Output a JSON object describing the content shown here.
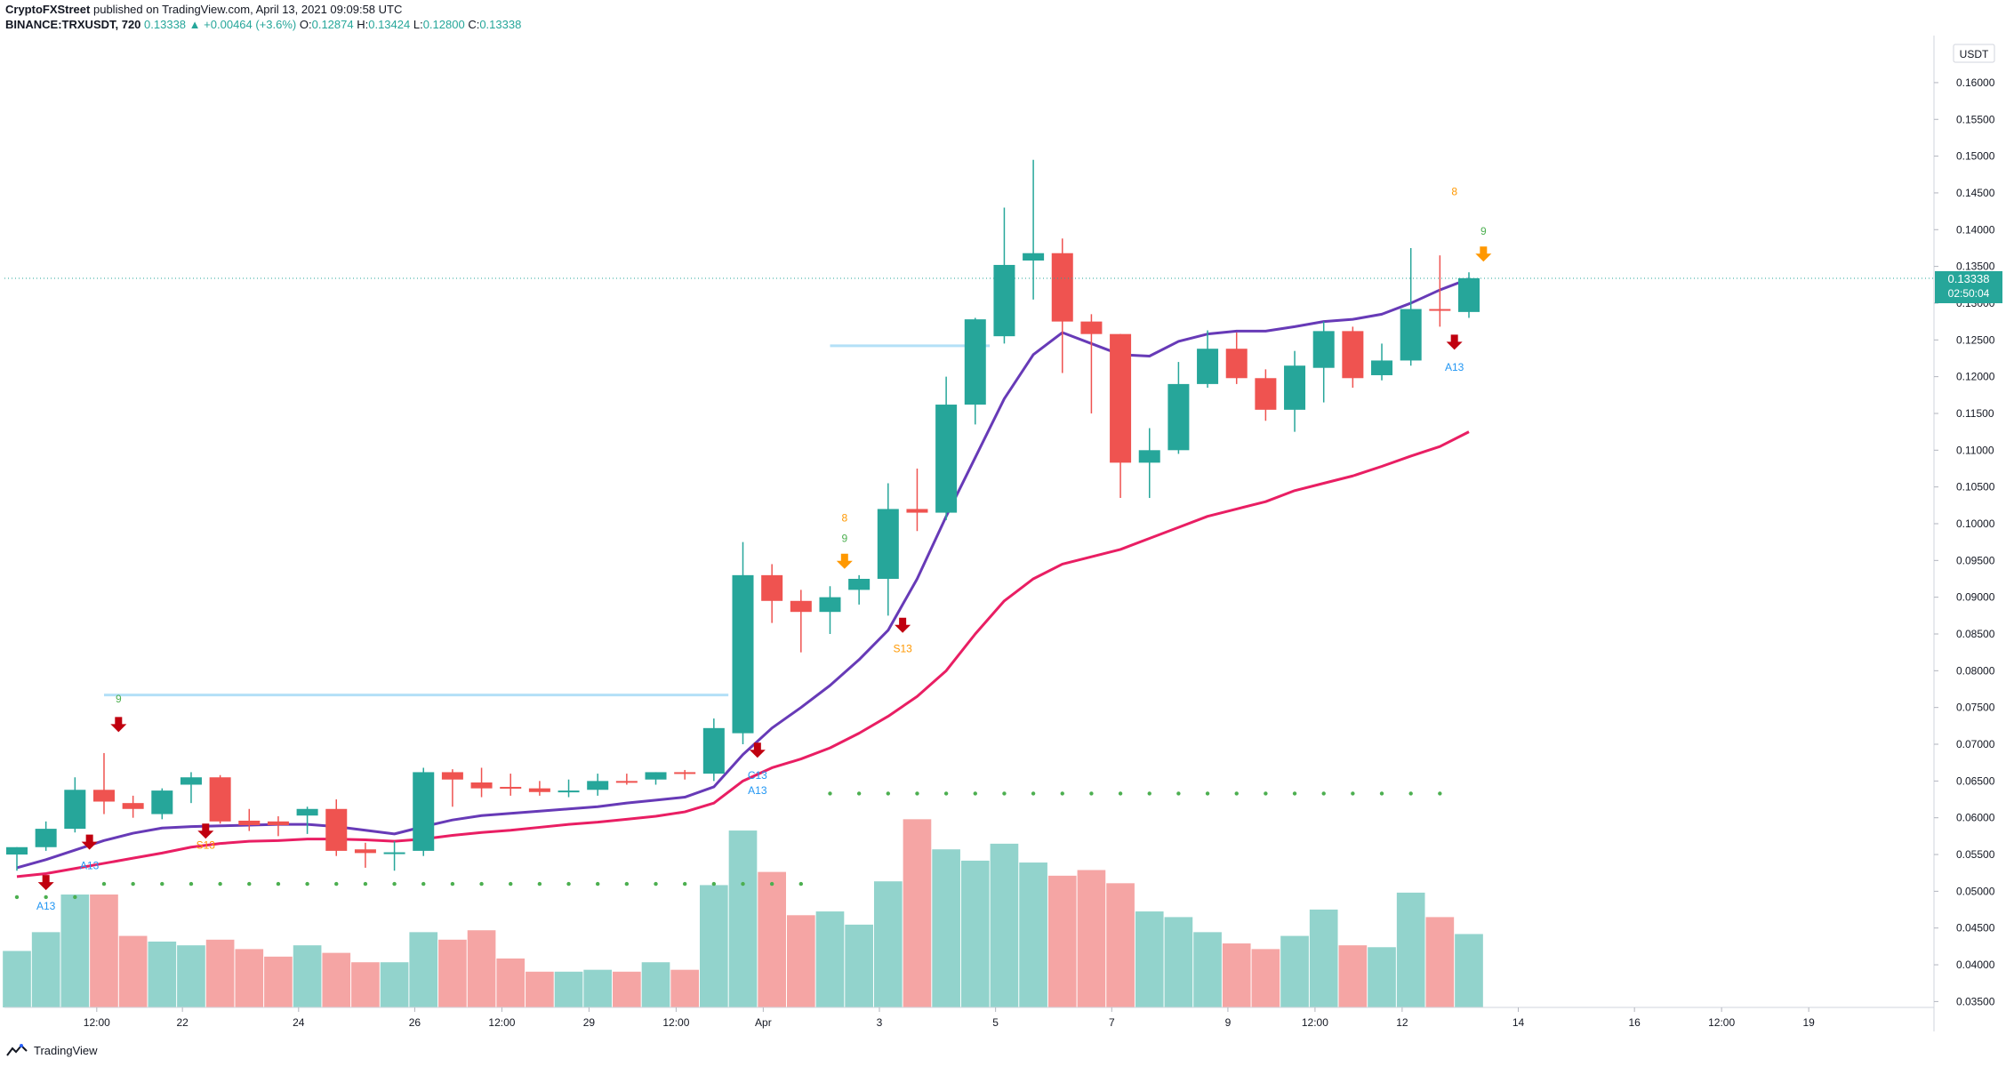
{
  "header": {
    "author": "CryptoFXStreet",
    "published_text": "published on TradingView.com, April 13, 2021 09:09:58 UTC",
    "symbol": "BINANCE:TRXUSDT, 720",
    "last_price": "0.13338",
    "change": "+0.00464 (+3.6%)",
    "open_label": "O:",
    "open": "0.12874",
    "high_label": "H:",
    "high": "0.13424",
    "low_label": "L:",
    "low": "0.12800",
    "close_label": "C:",
    "close": "0.13338"
  },
  "footer": {
    "brand": "TradingView"
  },
  "colors": {
    "up": "#26a69a",
    "down": "#ef5350",
    "vol_up": "#92d3cc",
    "vol_down": "#f5a5a4",
    "ma_fast": "#673ab7",
    "ma_slow": "#e91e63",
    "resistance": "#b3e0f7",
    "dots": "#4caf50"
  },
  "chart_data": {
    "type": "candlestick",
    "title": "",
    "currency_label": "USDT",
    "price_ticks": [
      "0.16000",
      "0.15500",
      "0.15000",
      "0.14500",
      "0.14000",
      "0.13500",
      "0.13000",
      "0.12500",
      "0.12000",
      "0.11500",
      "0.11000",
      "0.10500",
      "0.10000",
      "0.09500",
      "0.09000",
      "0.08500",
      "0.08000",
      "0.07500",
      "0.07000",
      "0.06500",
      "0.06000",
      "0.05500",
      "0.05000",
      "0.04500",
      "0.04000",
      "0.03500"
    ],
    "ylim": [
      0.0342,
      0.1664
    ],
    "last_price_label": "0.13338",
    "countdown_label": "02:50:04",
    "x_ticks": [
      {
        "label": "19",
        "i": -0.5
      },
      {
        "label": "12:00",
        "i": 2.75
      },
      {
        "label": "22",
        "i": 5.7
      },
      {
        "label": "24",
        "i": 9.7
      },
      {
        "label": "26",
        "i": 13.7
      },
      {
        "label": "12:00",
        "i": 16.7
      },
      {
        "label": "29",
        "i": 19.7
      },
      {
        "label": "12:00",
        "i": 22.7
      },
      {
        "label": "Apr",
        "i": 25.7
      },
      {
        "label": "3",
        "i": 29.7
      },
      {
        "label": "5",
        "i": 33.7
      },
      {
        "label": "7",
        "i": 37.7
      },
      {
        "label": "9",
        "i": 41.7
      },
      {
        "label": "12:00",
        "i": 44.7
      },
      {
        "label": "12",
        "i": 47.7
      },
      {
        "label": "14",
        "i": 51.7
      },
      {
        "label": "16",
        "i": 55.7
      },
      {
        "label": "12:00",
        "i": 58.7
      },
      {
        "label": "19",
        "i": 61.7
      }
    ],
    "candles": [
      {
        "o": 0.055,
        "h": 0.056,
        "l": 0.0528,
        "c": 0.056
      },
      {
        "o": 0.056,
        "h": 0.0595,
        "l": 0.0555,
        "c": 0.0585
      },
      {
        "o": 0.0585,
        "h": 0.0655,
        "l": 0.058,
        "c": 0.0638
      },
      {
        "o": 0.0638,
        "h": 0.0688,
        "l": 0.0605,
        "c": 0.0622
      },
      {
        "o": 0.062,
        "h": 0.063,
        "l": 0.06,
        "c": 0.0612
      },
      {
        "o": 0.0605,
        "h": 0.064,
        "l": 0.0598,
        "c": 0.0637
      },
      {
        "o": 0.0645,
        "h": 0.0662,
        "l": 0.062,
        "c": 0.0655
      },
      {
        "o": 0.0655,
        "h": 0.0658,
        "l": 0.0592,
        "c": 0.0595
      },
      {
        "o": 0.0596,
        "h": 0.0612,
        "l": 0.0582,
        "c": 0.059
      },
      {
        "o": 0.0595,
        "h": 0.0602,
        "l": 0.0575,
        "c": 0.059
      },
      {
        "o": 0.0603,
        "h": 0.0615,
        "l": 0.0578,
        "c": 0.0612
      },
      {
        "o": 0.0612,
        "h": 0.0625,
        "l": 0.0548,
        "c": 0.0555
      },
      {
        "o": 0.0557,
        "h": 0.0566,
        "l": 0.0532,
        "c": 0.0552
      },
      {
        "o": 0.0553,
        "h": 0.0568,
        "l": 0.0528,
        "c": 0.0553
      },
      {
        "o": 0.0555,
        "h": 0.0668,
        "l": 0.0548,
        "c": 0.0662
      },
      {
        "o": 0.0662,
        "h": 0.0666,
        "l": 0.0615,
        "c": 0.0652
      },
      {
        "o": 0.0648,
        "h": 0.0668,
        "l": 0.0628,
        "c": 0.064
      },
      {
        "o": 0.0642,
        "h": 0.066,
        "l": 0.063,
        "c": 0.064
      },
      {
        "o": 0.064,
        "h": 0.065,
        "l": 0.063,
        "c": 0.0635
      },
      {
        "o": 0.0637,
        "h": 0.0652,
        "l": 0.0628,
        "c": 0.0637
      },
      {
        "o": 0.0638,
        "h": 0.066,
        "l": 0.063,
        "c": 0.065
      },
      {
        "o": 0.065,
        "h": 0.066,
        "l": 0.0645,
        "c": 0.0648
      },
      {
        "o": 0.0652,
        "h": 0.0662,
        "l": 0.0645,
        "c": 0.0662
      },
      {
        "o": 0.0662,
        "h": 0.0665,
        "l": 0.0652,
        "c": 0.066
      },
      {
        "o": 0.066,
        "h": 0.0735,
        "l": 0.065,
        "c": 0.0722
      },
      {
        "o": 0.0715,
        "h": 0.0975,
        "l": 0.07,
        "c": 0.093
      },
      {
        "o": 0.093,
        "h": 0.0945,
        "l": 0.0865,
        "c": 0.0895
      },
      {
        "o": 0.0895,
        "h": 0.091,
        "l": 0.0825,
        "c": 0.088
      },
      {
        "o": 0.088,
        "h": 0.0915,
        "l": 0.085,
        "c": 0.09
      },
      {
        "o": 0.091,
        "h": 0.093,
        "l": 0.089,
        "c": 0.0925
      },
      {
        "o": 0.0925,
        "h": 0.1055,
        "l": 0.0875,
        "c": 0.102
      },
      {
        "o": 0.102,
        "h": 0.1075,
        "l": 0.099,
        "c": 0.1015
      },
      {
        "o": 0.1015,
        "h": 0.12,
        "l": 0.1005,
        "c": 0.1162
      },
      {
        "o": 0.1162,
        "h": 0.128,
        "l": 0.1135,
        "c": 0.1278
      },
      {
        "o": 0.1255,
        "h": 0.143,
        "l": 0.1245,
        "c": 0.1352
      },
      {
        "o": 0.1358,
        "h": 0.1495,
        "l": 0.1305,
        "c": 0.1368
      },
      {
        "o": 0.1368,
        "h": 0.1388,
        "l": 0.1205,
        "c": 0.1275
      },
      {
        "o": 0.1275,
        "h": 0.1285,
        "l": 0.115,
        "c": 0.1258
      },
      {
        "o": 0.1258,
        "h": 0.1258,
        "l": 0.1035,
        "c": 0.1083
      },
      {
        "o": 0.1083,
        "h": 0.113,
        "l": 0.1035,
        "c": 0.11
      },
      {
        "o": 0.11,
        "h": 0.122,
        "l": 0.1095,
        "c": 0.119
      },
      {
        "o": 0.119,
        "h": 0.1263,
        "l": 0.1185,
        "c": 0.1238
      },
      {
        "o": 0.1238,
        "h": 0.126,
        "l": 0.119,
        "c": 0.1198
      },
      {
        "o": 0.1198,
        "h": 0.121,
        "l": 0.114,
        "c": 0.1155
      },
      {
        "o": 0.1155,
        "h": 0.1235,
        "l": 0.1125,
        "c": 0.1215
      },
      {
        "o": 0.1212,
        "h": 0.1275,
        "l": 0.1165,
        "c": 0.1262
      },
      {
        "o": 0.1262,
        "h": 0.1268,
        "l": 0.1185,
        "c": 0.1198
      },
      {
        "o": 0.1202,
        "h": 0.1245,
        "l": 0.1195,
        "c": 0.1222
      },
      {
        "o": 0.1222,
        "h": 0.1375,
        "l": 0.1215,
        "c": 0.1292
      },
      {
        "o": 0.1292,
        "h": 0.1365,
        "l": 0.1268,
        "c": 0.129
      },
      {
        "o": 0.1288,
        "h": 0.1342,
        "l": 0.128,
        "c": 0.1334
      }
    ],
    "volume": [
      0.3,
      0.4,
      0.6,
      0.6,
      0.38,
      0.35,
      0.33,
      0.36,
      0.31,
      0.27,
      0.33,
      0.29,
      0.24,
      0.24,
      0.4,
      0.36,
      0.41,
      0.26,
      0.19,
      0.19,
      0.2,
      0.19,
      0.24,
      0.2,
      0.65,
      0.94,
      0.72,
      0.49,
      0.51,
      0.44,
      0.67,
      1.0,
      0.84,
      0.78,
      0.87,
      0.77,
      0.7,
      0.73,
      0.66,
      0.51,
      0.48,
      0.4,
      0.34,
      0.31,
      0.38,
      0.52,
      0.33,
      0.32,
      0.61,
      0.48,
      0.39
    ],
    "ma_fast": [
      0.0532,
      0.0543,
      0.0556,
      0.0569,
      0.0579,
      0.0586,
      0.0588,
      0.0589,
      0.059,
      0.0591,
      0.0591,
      0.0588,
      0.0583,
      0.0578,
      0.0588,
      0.0597,
      0.0603,
      0.0606,
      0.0609,
      0.0612,
      0.0615,
      0.062,
      0.0624,
      0.0628,
      0.0642,
      0.0686,
      0.0722,
      0.075,
      0.078,
      0.0815,
      0.0855,
      0.0925,
      0.101,
      0.109,
      0.117,
      0.123,
      0.126,
      0.1245,
      0.123,
      0.1228,
      0.1248,
      0.1258,
      0.1262,
      0.1262,
      0.1268,
      0.1275,
      0.1278,
      0.1285,
      0.13,
      0.1318,
      0.1333
    ],
    "ma_slow": [
      0.052,
      0.0524,
      0.0531,
      0.0538,
      0.0545,
      0.0552,
      0.056,
      0.0565,
      0.0568,
      0.0569,
      0.0571,
      0.0571,
      0.057,
      0.0568,
      0.0571,
      0.0576,
      0.058,
      0.0583,
      0.0587,
      0.0591,
      0.0594,
      0.0598,
      0.0602,
      0.0608,
      0.062,
      0.065,
      0.0668,
      0.068,
      0.0695,
      0.0715,
      0.0738,
      0.0765,
      0.08,
      0.085,
      0.0895,
      0.0925,
      0.0945,
      0.0955,
      0.0965,
      0.098,
      0.0995,
      0.101,
      0.102,
      0.103,
      0.1045,
      0.1055,
      0.1065,
      0.1078,
      0.1092,
      0.1105,
      0.1125
    ],
    "resistance_lines": [
      {
        "from": 3,
        "to": 24.5,
        "price": 0.0767
      },
      {
        "from": 28,
        "to": 33.5,
        "price": 0.1242
      }
    ],
    "dot_lines": [
      {
        "from": 0,
        "to": 2,
        "price": 0.0492
      },
      {
        "from": 3,
        "to": 27,
        "price": 0.051
      },
      {
        "from": 28,
        "to": 49,
        "price": 0.0633
      }
    ],
    "signals": [
      {
        "type": "arrow-down",
        "color": "#c0000f",
        "i": 1,
        "price": 0.051
      },
      {
        "type": "label",
        "text": "A13",
        "color": "#2196f3",
        "i": 1,
        "price": 0.0475
      },
      {
        "type": "arrow-down",
        "color": "#c0000f",
        "i": 2.5,
        "price": 0.0565
      },
      {
        "type": "label",
        "text": "A13",
        "color": "#2196f3",
        "i": 2.5,
        "price": 0.053
      },
      {
        "type": "label",
        "text": "9",
        "color": "#4caf50",
        "i": 3.5,
        "price": 0.0757
      },
      {
        "type": "arrow-down",
        "color": "#c0000f",
        "i": 3.5,
        "price": 0.0725
      },
      {
        "type": "arrow-down",
        "color": "#c0000f",
        "i": 6.5,
        "price": 0.058
      },
      {
        "type": "label",
        "text": "S13",
        "color": "#ff9800",
        "i": 6.5,
        "price": 0.0558
      },
      {
        "type": "arrow-down",
        "color": "#c0000f",
        "i": 25.5,
        "price": 0.069
      },
      {
        "type": "label",
        "text": "C13",
        "color": "#2196f3",
        "i": 25.5,
        "price": 0.0653
      },
      {
        "type": "label",
        "text": "A13",
        "color": "#2196f3",
        "i": 25.5,
        "price": 0.0632
      },
      {
        "type": "label",
        "text": "8",
        "color": "#ff9800",
        "i": 28.5,
        "price": 0.1003
      },
      {
        "type": "label",
        "text": "9",
        "color": "#4caf50",
        "i": 28.5,
        "price": 0.0975
      },
      {
        "type": "arrow-down",
        "color": "#ff9800",
        "i": 28.5,
        "price": 0.0947
      },
      {
        "type": "arrow-down",
        "color": "#c0000f",
        "i": 30.5,
        "price": 0.086
      },
      {
        "type": "label",
        "text": "S13",
        "color": "#ff9800",
        "i": 30.5,
        "price": 0.0825
      },
      {
        "type": "label",
        "text": "8",
        "color": "#ff9800",
        "i": 49.5,
        "price": 0.1447
      },
      {
        "type": "label",
        "text": "9",
        "color": "#4caf50",
        "i": 50.5,
        "price": 0.1393
      },
      {
        "type": "arrow-down",
        "color": "#ff9800",
        "i": 50.5,
        "price": 0.1365
      },
      {
        "type": "arrow-down",
        "color": "#c0000f",
        "i": 49.5,
        "price": 0.1245
      },
      {
        "type": "label",
        "text": "A13",
        "color": "#2196f3",
        "i": 49.5,
        "price": 0.1208
      }
    ]
  }
}
